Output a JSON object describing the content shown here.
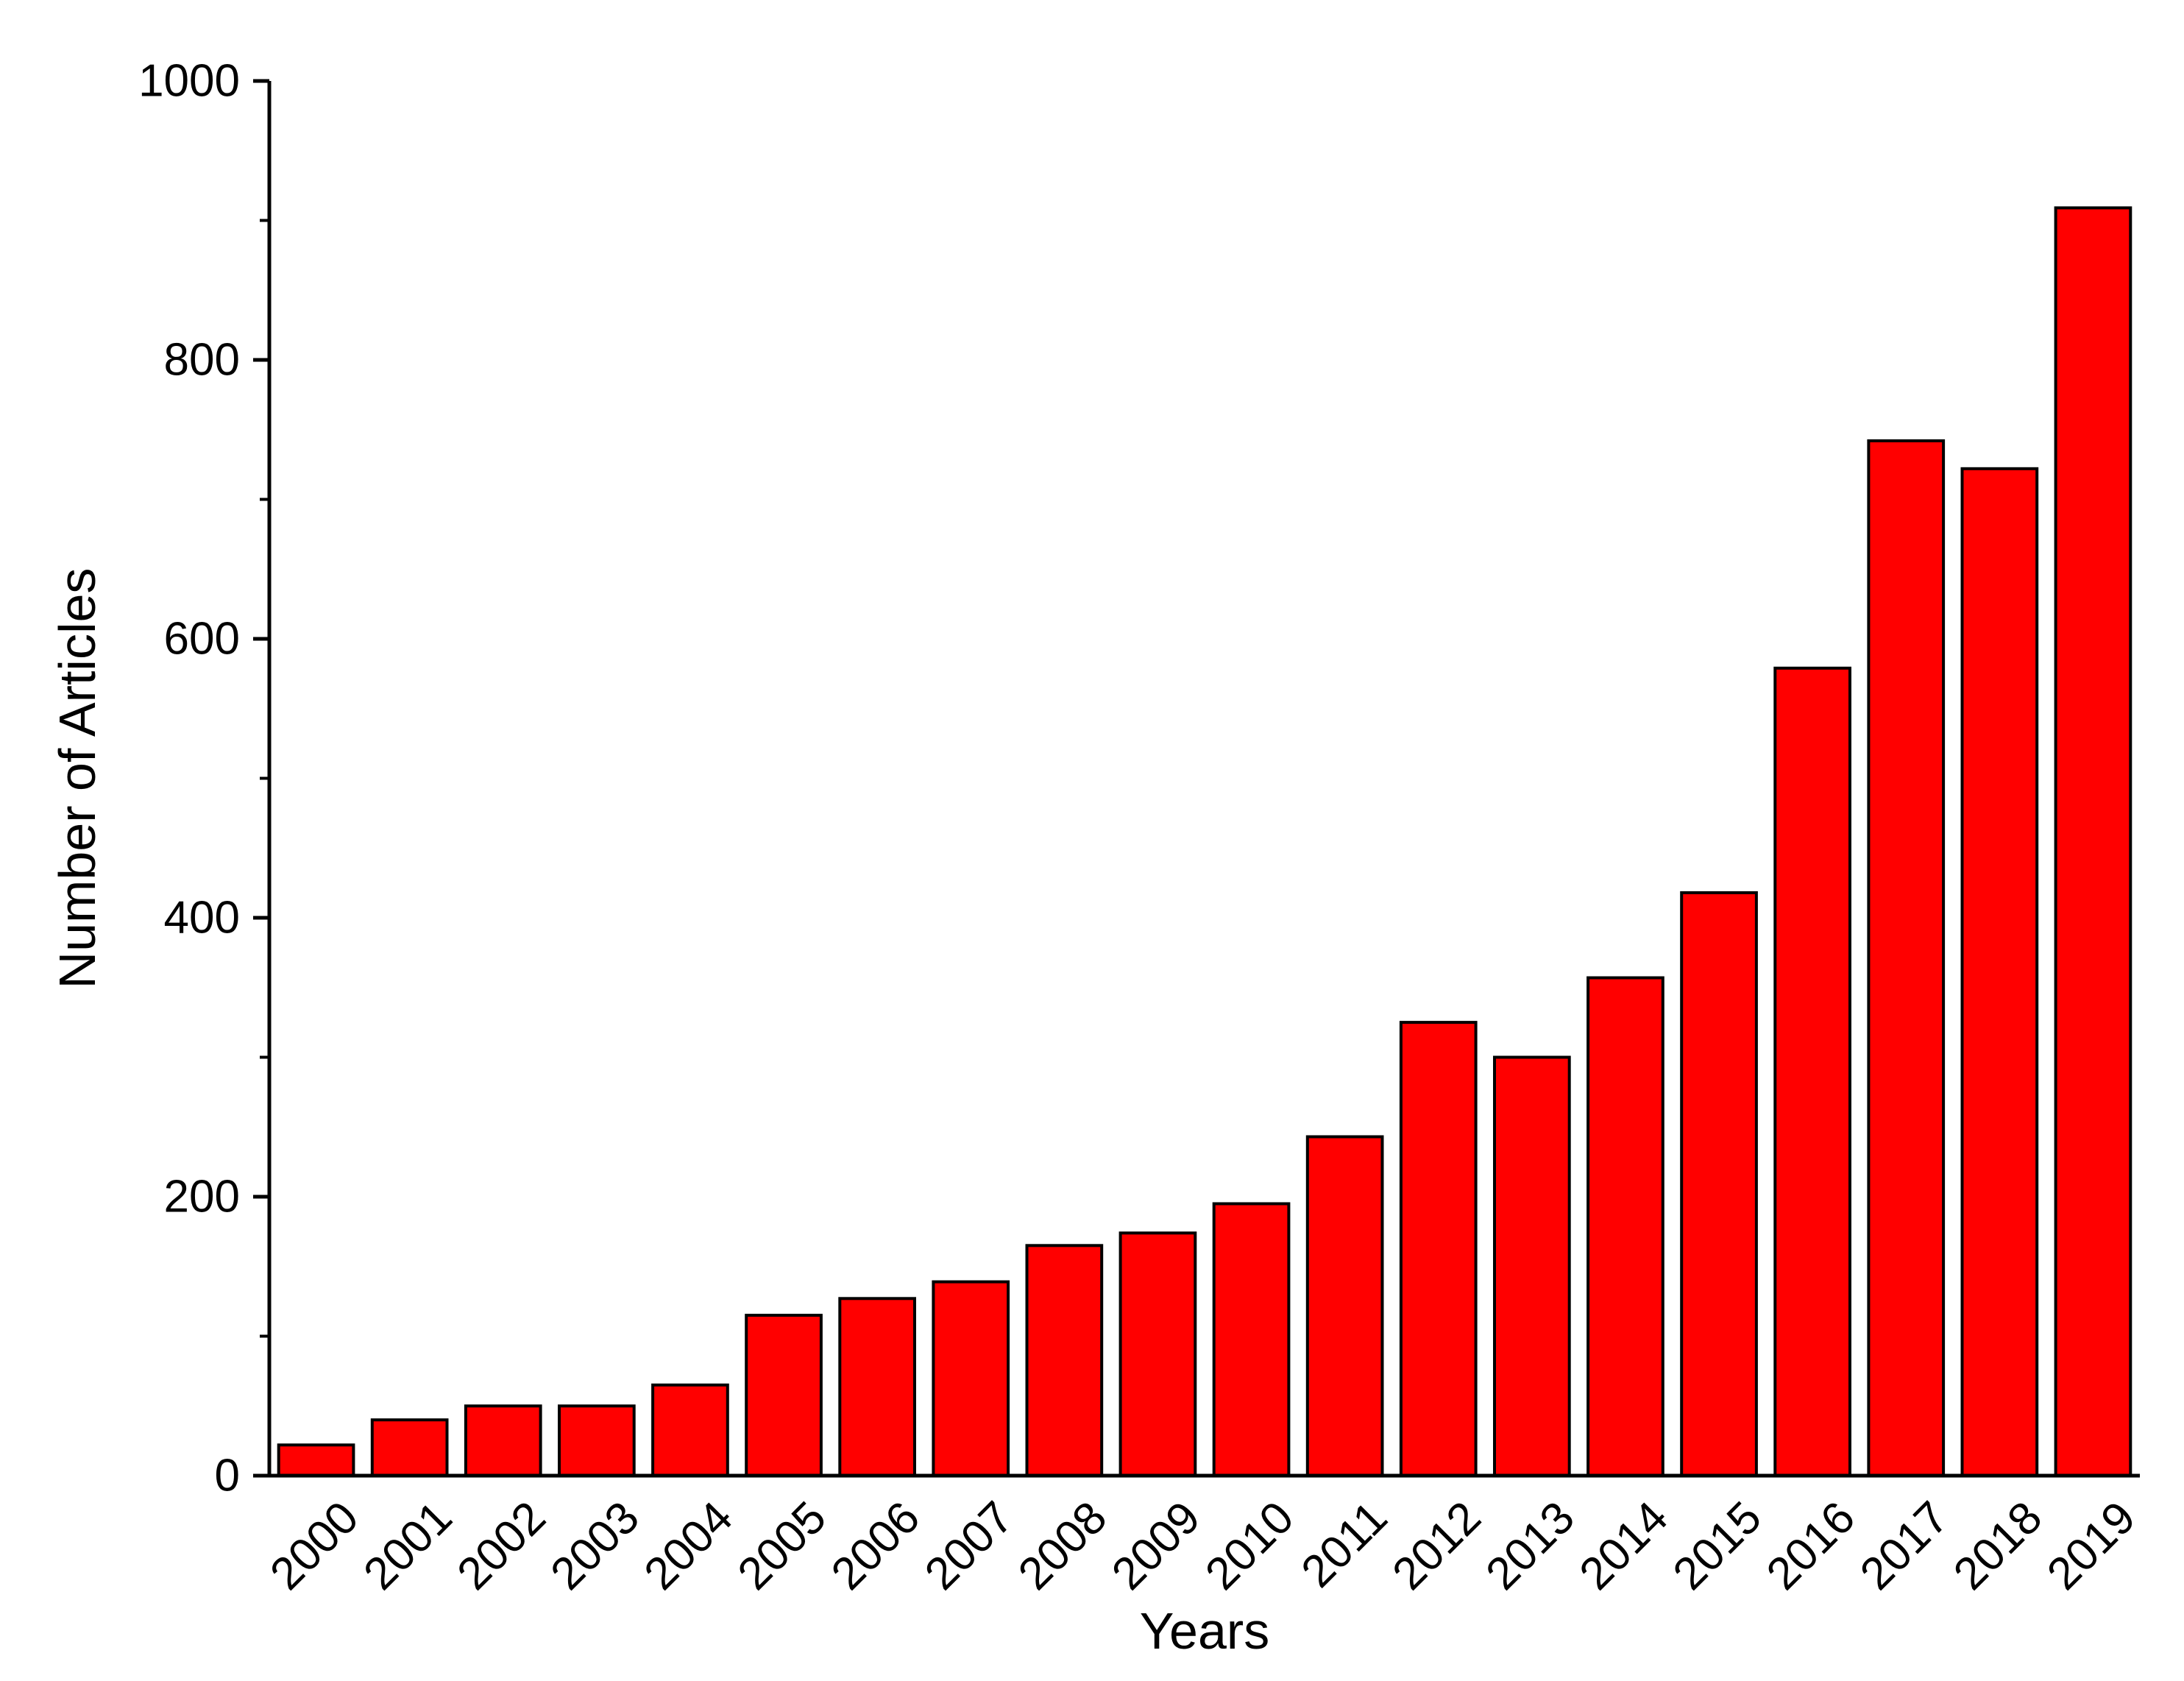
{
  "chart_data": {
    "type": "bar",
    "categories": [
      "2000",
      "2001",
      "2002",
      "2003",
      "2004",
      "2005",
      "2006",
      "2007",
      "2008",
      "2009",
      "2010",
      "2011",
      "2012",
      "2013",
      "2014",
      "2015",
      "2016",
      "2017",
      "2018",
      "2019"
    ],
    "values": [
      22,
      40,
      50,
      50,
      65,
      115,
      127,
      139,
      165,
      174,
      195,
      243,
      325,
      300,
      357,
      418,
      579,
      742,
      722,
      909
    ],
    "title": "",
    "xlabel": "Years",
    "ylabel": "Number of Articles",
    "ylim": [
      0,
      1000
    ],
    "yticks": [
      0,
      200,
      400,
      600,
      800,
      1000
    ],
    "yticks_minor": [
      100,
      300,
      500,
      700,
      900
    ],
    "grid": false,
    "legend": "none",
    "colors": {
      "bar_fill": "#ff0000",
      "bar_stroke": "#000000",
      "axis": "#000000"
    }
  }
}
